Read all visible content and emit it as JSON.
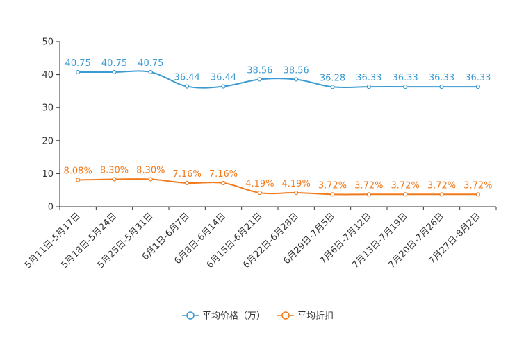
{
  "chart_data": {
    "type": "line",
    "categories": [
      "5月11日-5月17日",
      "5月18日-5月24日",
      "5月25日-5月31日",
      "6月1日-6月7日",
      "6月8日-6月14日",
      "6月15日-6月21日",
      "6月22日-6月28日",
      "6月29日-7月5日",
      "7月6日-7月12日",
      "7月13日-7月19日",
      "7月20日-7月26日",
      "7月27日-8月2日"
    ],
    "ylim": [
      0,
      50
    ],
    "yticks": [
      0,
      10,
      20,
      30,
      40,
      50
    ],
    "ytick_labels": [
      "0",
      "10",
      "20",
      "30",
      "40",
      "50"
    ],
    "series": [
      {
        "name": "平均价格（万）",
        "color": "#3a9ad1",
        "values": [
          40.75,
          40.75,
          40.75,
          36.44,
          36.44,
          38.56,
          38.56,
          36.28,
          36.33,
          36.33,
          36.33,
          36.33
        ],
        "labels": [
          "40.75",
          "40.75",
          "40.75",
          "36.44",
          "36.44",
          "38.56",
          "38.56",
          "36.28",
          "36.33",
          "36.33",
          "36.33",
          "36.33"
        ]
      },
      {
        "name": "平均折扣",
        "color": "#f07b1e",
        "values": [
          8.08,
          8.3,
          8.3,
          7.16,
          7.16,
          4.19,
          4.19,
          3.72,
          3.72,
          3.72,
          3.72,
          3.72
        ],
        "labels": [
          "8.08%",
          "8.30%",
          "8.30%",
          "7.16%",
          "7.16%",
          "4.19%",
          "4.19%",
          "3.72%",
          "3.72%",
          "3.72%",
          "3.72%",
          "3.72%"
        ]
      }
    ]
  }
}
